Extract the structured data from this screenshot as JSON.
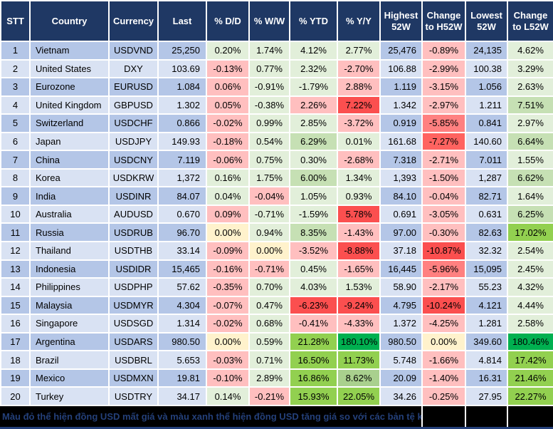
{
  "colors": {
    "header_bg": "#1F3864",
    "header_text": "#FFFFFF",
    "row_odd": "#B4C6E7",
    "row_even": "#D9E2F3",
    "gridline": "#FFFFFF",
    "footer_bg": "#000000",
    "footer_text": "#24407A"
  },
  "footer": {
    "note": "Màu đỏ thể hiện đồng USD mất giá và màu xanh thể hiện đồng USD tăng giá so với các bản tệ khác."
  },
  "chart_data": {
    "type": "table",
    "title": "",
    "columns": [
      "STT",
      "Country",
      "Currency",
      "Last",
      "% D/D",
      "% W/W",
      "% YTD",
      "% Y/Y",
      "Highest 52W",
      "Change to H52W",
      "Lowest 52W",
      "Change to L52W"
    ],
    "rows": [
      [
        "1",
        "Vietnam",
        "USDVND",
        "25,250",
        "0.20%",
        "1.74%",
        "4.12%",
        "2.77%",
        "25,476",
        "-0.89%",
        "24,135",
        "4.62%"
      ],
      [
        "2",
        "United States",
        "DXY",
        "103.69",
        "-0.13%",
        "0.77%",
        "2.32%",
        "-2.70%",
        "106.88",
        "-2.99%",
        "100.38",
        "3.29%"
      ],
      [
        "3",
        "Eurozone",
        "EURUSD",
        "1.084",
        "0.06%",
        "-0.91%",
        "-1.79%",
        "2.88%",
        "1.119",
        "-3.15%",
        "1.056",
        "2.63%"
      ],
      [
        "4",
        "United Kingdom",
        "GBPUSD",
        "1.302",
        "0.05%",
        "-0.38%",
        "2.26%",
        "7.22%",
        "1.342",
        "-2.97%",
        "1.211",
        "7.51%"
      ],
      [
        "5",
        "Switzerland",
        "USDCHF",
        "0.866",
        "-0.02%",
        "0.99%",
        "2.85%",
        "-3.72%",
        "0.919",
        "-5.85%",
        "0.841",
        "2.97%"
      ],
      [
        "6",
        "Japan",
        "USDJPY",
        "149.93",
        "-0.18%",
        "0.54%",
        "6.29%",
        "0.01%",
        "161.68",
        "-7.27%",
        "140.60",
        "6.64%"
      ],
      [
        "7",
        "China",
        "USDCNY",
        "7.119",
        "-0.06%",
        "0.75%",
        "0.30%",
        "-2.68%",
        "7.318",
        "-2.71%",
        "7.011",
        "1.55%"
      ],
      [
        "8",
        "Korea",
        "USDKRW",
        "1,372",
        "0.16%",
        "1.75%",
        "6.00%",
        "1.34%",
        "1,393",
        "-1.50%",
        "1,287",
        "6.62%"
      ],
      [
        "9",
        "India",
        "USDINR",
        "84.07",
        "0.04%",
        "-0.04%",
        "1.05%",
        "0.93%",
        "84.10",
        "-0.04%",
        "82.71",
        "1.64%"
      ],
      [
        "10",
        "Australia",
        "AUDUSD",
        "0.670",
        "0.09%",
        "-0.71%",
        "-1.59%",
        "5.78%",
        "0.691",
        "-3.05%",
        "0.631",
        "6.25%"
      ],
      [
        "11",
        "Russia",
        "USDRUB",
        "96.70",
        "0.00%",
        "0.94%",
        "8.35%",
        "-1.43%",
        "97.00",
        "-0.30%",
        "82.63",
        "17.02%"
      ],
      [
        "12",
        "Thailand",
        "USDTHB",
        "33.14",
        "-0.09%",
        "0.00%",
        "-3.52%",
        "-8.88%",
        "37.18",
        "-10.87%",
        "32.32",
        "2.54%"
      ],
      [
        "13",
        "Indonesia",
        "USDIDR",
        "15,465",
        "-0.16%",
        "-0.71%",
        "0.45%",
        "-1.65%",
        "16,445",
        "-5.96%",
        "15,095",
        "2.45%"
      ],
      [
        "14",
        "Philippines",
        "USDPHP",
        "57.62",
        "-0.35%",
        "0.70%",
        "4.03%",
        "1.53%",
        "58.90",
        "-2.17%",
        "55.23",
        "4.32%"
      ],
      [
        "15",
        "Malaysia",
        "USDMYR",
        "4.304",
        "-0.07%",
        "0.47%",
        "-6.23%",
        "-9.24%",
        "4.795",
        "-10.24%",
        "4.121",
        "4.44%"
      ],
      [
        "16",
        "Singapore",
        "USDSGD",
        "1.314",
        "-0.02%",
        "0.68%",
        "-0.41%",
        "-4.33%",
        "1.372",
        "-4.25%",
        "1.281",
        "2.58%"
      ],
      [
        "17",
        "Argentina",
        "USDARS",
        "980.50",
        "0.00%",
        "0.59%",
        "21.28%",
        "180.10%",
        "980.50",
        "0.00%",
        "349.60",
        "180.46%"
      ],
      [
        "18",
        "Brazil",
        "USDBRL",
        "5.653",
        "-0.03%",
        "0.71%",
        "16.50%",
        "11.73%",
        "5.748",
        "-1.66%",
        "4.814",
        "17.42%"
      ],
      [
        "19",
        "Mexico",
        "USDMXN",
        "19.81",
        "-0.10%",
        "2.89%",
        "16.86%",
        "8.62%",
        "20.09",
        "-1.40%",
        "16.31",
        "21.46%"
      ],
      [
        "20",
        "Turkey",
        "USDTRY",
        "34.17",
        "0.14%",
        "-0.21%",
        "15.93%",
        "22.05%",
        "34.26",
        "-0.25%",
        "27.95",
        "22.27%"
      ]
    ]
  },
  "cell_colors": {
    "palette": {
      "g1": "#E2EFDA",
      "g2": "#C6E0B4",
      "g3": "#A9D08E",
      "g4": "#92D050",
      "g5": "#00B050",
      "y": "#FFF2CC",
      "r1": "#FFBFBF",
      "r2": "#FF8080",
      "r3": "#FF6360",
      "r4": "#FB4F4F"
    },
    "by_row": [
      [
        null,
        null,
        null,
        null,
        "g1",
        "g1",
        "g1",
        "g1",
        null,
        "r1",
        null,
        "g1"
      ],
      [
        null,
        null,
        null,
        null,
        "r1",
        "g1",
        "g1",
        "r1",
        null,
        "r1",
        null,
        "g1"
      ],
      [
        null,
        null,
        null,
        null,
        "r1",
        "g1",
        "g1",
        "r1",
        null,
        "r1",
        null,
        "g1"
      ],
      [
        null,
        null,
        null,
        null,
        "r1",
        "g1",
        "r1",
        "r4",
        null,
        "r1",
        null,
        "g2"
      ],
      [
        null,
        null,
        null,
        null,
        "r1",
        "g1",
        "g1",
        "r1",
        null,
        "r2",
        null,
        "g1"
      ],
      [
        null,
        null,
        null,
        null,
        "r1",
        "g1",
        "g2",
        "g1",
        null,
        "r3",
        null,
        "g2"
      ],
      [
        null,
        null,
        null,
        null,
        "r1",
        "g1",
        "g1",
        "r1",
        null,
        "r1",
        null,
        "g1"
      ],
      [
        null,
        null,
        null,
        null,
        "g1",
        "g1",
        "g2",
        "g1",
        null,
        "r1",
        null,
        "g2"
      ],
      [
        null,
        null,
        null,
        null,
        "g1",
        "r1",
        "g1",
        "g1",
        null,
        "r1",
        null,
        "g1"
      ],
      [
        null,
        null,
        null,
        null,
        "r1",
        "g1",
        "g1",
        "r4",
        null,
        "r1",
        null,
        "g2"
      ],
      [
        null,
        null,
        null,
        null,
        "y",
        "g1",
        "g2",
        "r1",
        null,
        "r1",
        null,
        "g4"
      ],
      [
        null,
        null,
        null,
        null,
        "r1",
        "y",
        "r1",
        "r4",
        null,
        "r4",
        null,
        "g1"
      ],
      [
        null,
        null,
        null,
        null,
        "r1",
        "r1",
        "g1",
        "r1",
        null,
        "r2",
        null,
        "g1"
      ],
      [
        null,
        null,
        null,
        null,
        "r1",
        "g1",
        "g1",
        "g1",
        null,
        "r1",
        null,
        "g1"
      ],
      [
        null,
        null,
        null,
        null,
        "r1",
        "g1",
        "r4",
        "r4",
        null,
        "r4",
        null,
        "g1"
      ],
      [
        null,
        null,
        null,
        null,
        "r1",
        "g1",
        "r1",
        "r1",
        null,
        "r1",
        null,
        "g1"
      ],
      [
        null,
        null,
        null,
        null,
        "y",
        "g1",
        "g4",
        "g5",
        null,
        "y",
        null,
        "g5"
      ],
      [
        null,
        null,
        null,
        null,
        "r1",
        "g1",
        "g4",
        "g4",
        null,
        "r1",
        null,
        "g4"
      ],
      [
        null,
        null,
        null,
        null,
        "r1",
        "g1",
        "g4",
        "g3",
        null,
        "r1",
        null,
        "g4"
      ],
      [
        null,
        null,
        null,
        null,
        "g1",
        "r1",
        "g4",
        "g4",
        null,
        "r1",
        null,
        "g4"
      ]
    ]
  }
}
